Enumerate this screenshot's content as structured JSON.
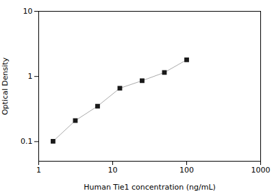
{
  "chart_data": {
    "type": "line",
    "x": [
      1.563,
      3.125,
      6.25,
      12.5,
      25,
      50,
      100
    ],
    "values": [
      0.101,
      0.21,
      0.35,
      0.66,
      0.86,
      1.15,
      1.8
    ],
    "xlabel": "Human Tie1 concentration (ng/mL)",
    "ylabel": "Optical Density",
    "xlim": [
      1,
      1000
    ],
    "ylim": [
      0.05,
      10
    ],
    "xticks": [
      1,
      10,
      100,
      1000
    ],
    "yticks": [
      0.1,
      1,
      10
    ],
    "log": true,
    "grid": false,
    "color": "#aaaaaa",
    "colors": [
      "#1a1a1a",
      "#1a1a1a",
      "#1a1a1a",
      "#1a1a1a",
      "#1a1a1a",
      "#1a1a1a",
      "#1a1a1a"
    ],
    "marker": "square"
  }
}
